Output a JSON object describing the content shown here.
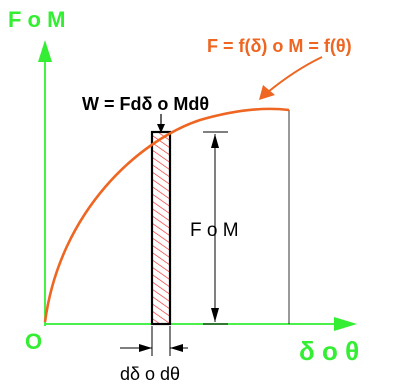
{
  "labels": {
    "y_axis": "F o M",
    "x_axis": "δ o θ",
    "origin": "O",
    "curve": "F = f(δ) o M = f(θ)",
    "work": "W = Fdδ o Mdθ",
    "height": "F o M",
    "width": "dδ o dθ"
  },
  "colors": {
    "axis": "#33ee33",
    "curve": "#ee6622",
    "hatch": "#ee3333",
    "ink": "#000000"
  }
}
